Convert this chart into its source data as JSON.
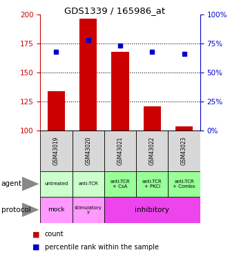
{
  "title": "GDS1339 / 165986_at",
  "samples": [
    "GSM43019",
    "GSM43020",
    "GSM43021",
    "GSM43022",
    "GSM43023"
  ],
  "count_values": [
    134,
    196,
    168,
    121,
    104
  ],
  "percentile_values": [
    68,
    78,
    73,
    68,
    66
  ],
  "ylim_left": [
    100,
    200
  ],
  "ylim_right": [
    0,
    100
  ],
  "yticks_left": [
    100,
    125,
    150,
    175,
    200
  ],
  "yticks_right": [
    0,
    25,
    50,
    75,
    100
  ],
  "agent_labels": [
    "untreated",
    "anti-TCR",
    "anti-TCR\n+ CsA",
    "anti-TCR\n+ PKCi",
    "anti-TCR\n+ Combo"
  ],
  "protocol_mock": "mock",
  "protocol_stimulatory": "stimulatory\ny",
  "protocol_inhibitory": "inhibitory",
  "agent_color_light": "#ccffcc",
  "agent_color_dark": "#99ff99",
  "protocol_mock_color": "#ff99ff",
  "protocol_stim_color": "#ff99ff",
  "protocol_inhib_color": "#ee44ee",
  "bar_color": "#cc0000",
  "dot_color": "#0000cc",
  "sample_box_color": "#d8d8d8",
  "left_axis_color": "#cc0000",
  "right_axis_color": "#0000cc",
  "legend_count": "count",
  "legend_pct": "percentile rank within the sample",
  "label_agent": "agent",
  "label_protocol": "protocol"
}
